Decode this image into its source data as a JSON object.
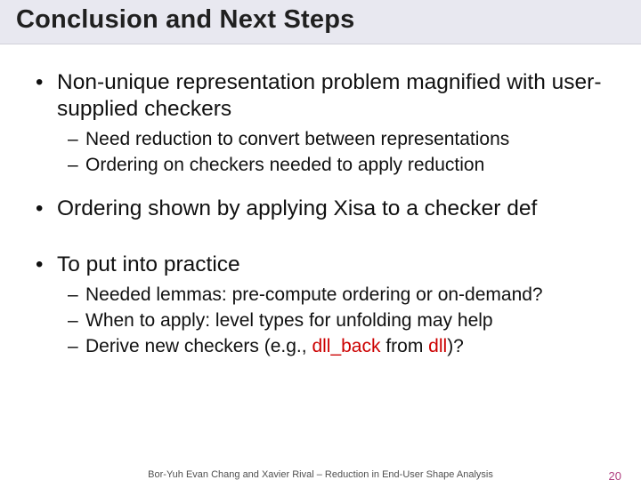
{
  "title": "Conclusion and Next Steps",
  "bullets": {
    "b1": "Non-unique representation problem magnified with user-supplied checkers",
    "b1_sub": {
      "s1": "Need reduction to convert between representations",
      "s2": "Ordering on checkers needed to apply reduction"
    },
    "b2": "Ordering shown by applying Xisa to a checker def",
    "b3": "To put into practice",
    "b3_sub": {
      "s1": "Needed lemmas: pre-compute ordering or on-demand?",
      "s2": "When to apply: level types for unfolding may help",
      "s3_pre": "Derive new checkers (e.g., ",
      "s3_code1": "dll_back",
      "s3_mid": " from ",
      "s3_code2": "dll",
      "s3_post": ")?"
    }
  },
  "footer": {
    "center": "Bor-Yuh Evan Chang and Xavier Rival – Reduction in End-User Shape Analysis",
    "page": "20"
  },
  "colors": {
    "title_bg": "#e8e8f0",
    "text": "#101010",
    "code": "#cc0000",
    "page_num": "#b04080"
  },
  "fonts": {
    "title_size_pt": 29,
    "lvl1_size_pt": 24.5,
    "lvl2_size_pt": 21,
    "footer_size_pt": 11
  }
}
